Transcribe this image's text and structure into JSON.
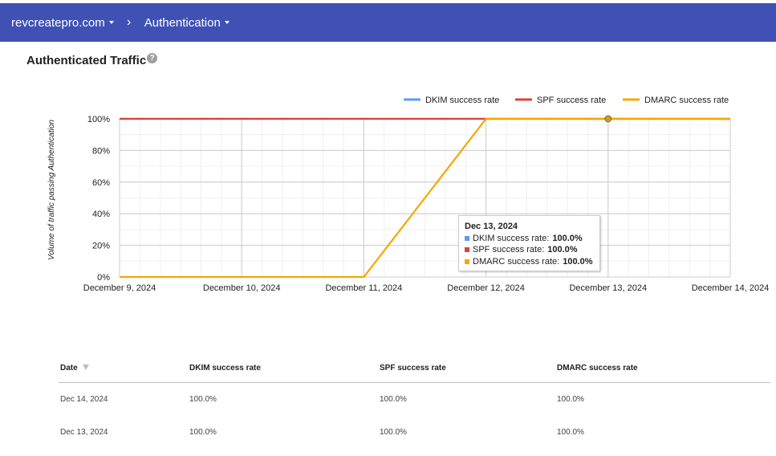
{
  "topbar": {
    "domain_label": "revcreatepro.com",
    "separator": "›",
    "section_label": "Authentication",
    "color": "#3f51b5"
  },
  "page": {
    "title": "Authenticated Traffic",
    "help_icon": "?"
  },
  "chart_data": {
    "type": "line",
    "title": "",
    "xlabel": "",
    "ylabel": "Volume of traffic passing Authentication",
    "x": [
      "December 9, 2024",
      "December 10, 2024",
      "December 11, 2024",
      "December 12, 2024",
      "December 13, 2024",
      "December 14, 2024"
    ],
    "y_ticks": [
      "0%",
      "20%",
      "40%",
      "60%",
      "80%",
      "100%"
    ],
    "ylim": [
      0,
      100
    ],
    "legend_position": "top-right",
    "grid": true,
    "series": [
      {
        "name": "DKIM success rate",
        "color": "#5a9cf0",
        "values": [
          100,
          100,
          100,
          100,
          100,
          100
        ]
      },
      {
        "name": "SPF success rate",
        "color": "#db4437",
        "values": [
          100,
          100,
          100,
          100,
          100,
          100
        ]
      },
      {
        "name": "DMARC success rate",
        "color": "#f4a700",
        "values": [
          0,
          0,
          0,
          100,
          100,
          100
        ]
      }
    ],
    "highlight_index": 4
  },
  "tooltip": {
    "date": "Dec 13, 2024",
    "rows": [
      {
        "label": "DKIM success rate:",
        "value": "100.0%",
        "color": "#5a9cf0"
      },
      {
        "label": "SPF success rate:",
        "value": "100.0%",
        "color": "#db4437"
      },
      {
        "label": "DMARC success rate:",
        "value": "100.0%",
        "color": "#f4a700"
      }
    ]
  },
  "table": {
    "headers": [
      "Date",
      "DKIM success rate",
      "SPF success rate",
      "DMARC success rate"
    ],
    "rows": [
      [
        "Dec 14, 2024",
        "100.0%",
        "100.0%",
        "100.0%"
      ],
      [
        "Dec 13, 2024",
        "100.0%",
        "100.0%",
        "100.0%"
      ]
    ]
  }
}
